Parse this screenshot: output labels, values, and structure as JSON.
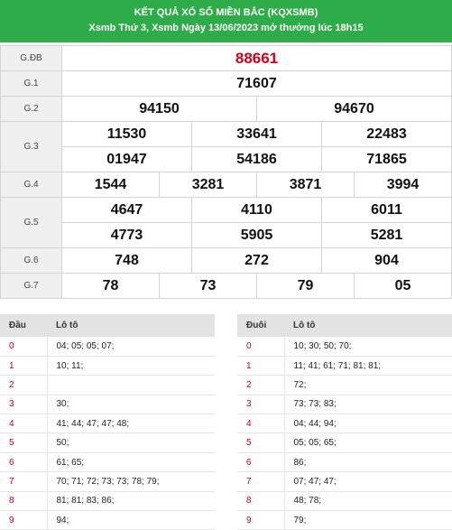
{
  "header": {
    "title": "KẾT QUẢ XỔ SỐ MIỀN BẮC (KQXSMB)",
    "subtitle": "Xsmb Thứ 3, Xsmb Ngày 13/06/2023 mở thưởng lúc 18h15"
  },
  "colors": {
    "header_bg": "#2fac4a",
    "special_prize": "#d0021b",
    "loto_head": "#d0021b"
  },
  "prizes": {
    "gdb": {
      "label": "G.ĐB",
      "numbers": [
        "88661"
      ]
    },
    "g1": {
      "label": "G.1",
      "numbers": [
        "71607"
      ]
    },
    "g2": {
      "label": "G.2",
      "numbers": [
        "94150",
        "94670"
      ]
    },
    "g3": {
      "label": "G.3",
      "numbers": [
        "11530",
        "33641",
        "22483",
        "01947",
        "54186",
        "71865"
      ]
    },
    "g4": {
      "label": "G.4",
      "numbers": [
        "1544",
        "3281",
        "3871",
        "3994"
      ]
    },
    "g5": {
      "label": "G.5",
      "numbers": [
        "4647",
        "4110",
        "6011",
        "4773",
        "5905",
        "5281"
      ]
    },
    "g6": {
      "label": "G.6",
      "numbers": [
        "748",
        "272",
        "904"
      ]
    },
    "g7": {
      "label": "G.7",
      "numbers": [
        "78",
        "73",
        "79",
        "05"
      ]
    }
  },
  "loto_head": {
    "col1": "Đầu",
    "col2": "Lô tô",
    "rows": [
      {
        "key": "0",
        "value": "04; 05; 05; 07;"
      },
      {
        "key": "1",
        "value": "10; 11;"
      },
      {
        "key": "2",
        "value": ""
      },
      {
        "key": "3",
        "value": "30;"
      },
      {
        "key": "4",
        "value": "41; 44; 47; 47; 48;"
      },
      {
        "key": "5",
        "value": "50;"
      },
      {
        "key": "6",
        "value": "61; 65;"
      },
      {
        "key": "7",
        "value": "70; 71; 72; 73; 73; 78; 79;"
      },
      {
        "key": "8",
        "value": "81; 81; 83; 86;"
      },
      {
        "key": "9",
        "value": "94;"
      }
    ]
  },
  "loto_tail": {
    "col1": "Đuôi",
    "col2": "Lô tô",
    "rows": [
      {
        "key": "0",
        "value": "10; 30; 50; 70;"
      },
      {
        "key": "1",
        "value": "11; 41; 61; 71; 81; 81;"
      },
      {
        "key": "2",
        "value": "72;"
      },
      {
        "key": "3",
        "value": "73; 73; 83;"
      },
      {
        "key": "4",
        "value": "04; 44; 94;"
      },
      {
        "key": "5",
        "value": "05; 05; 65;"
      },
      {
        "key": "6",
        "value": "86;"
      },
      {
        "key": "7",
        "value": "07; 47; 47;"
      },
      {
        "key": "8",
        "value": "48; 78;"
      },
      {
        "key": "9",
        "value": "79;"
      }
    ]
  }
}
